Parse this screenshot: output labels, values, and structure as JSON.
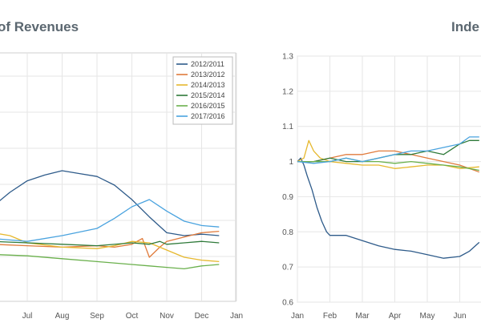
{
  "left_chart": {
    "title": "of Revenues"
  },
  "right_chart": {
    "title": "Inde"
  },
  "chart_data": [
    {
      "type": "line",
      "title": "of Revenues",
      "x_ticks": [
        "Jul",
        "Aug",
        "Sep",
        "Oct",
        "Nov",
        "Dec",
        "Jan"
      ],
      "legend_position": "top-right",
      "grid": true,
      "series": [
        {
          "name": "2012/2011",
          "color": "#2e5b8a",
          "x": [
            5.5,
            6.0,
            6.5,
            7.0,
            7.5,
            8.0,
            8.5,
            9.0,
            9.5,
            10.0,
            10.5,
            11.0,
            11.5,
            12.0,
            12.5
          ],
          "y": [
            0.35,
            0.4,
            0.5,
            0.58,
            0.62,
            0.65,
            0.63,
            0.61,
            0.55,
            0.45,
            0.33,
            0.22,
            0.2,
            0.21,
            0.2
          ]
        },
        {
          "name": "2013/2012",
          "color": "#e07b3c",
          "x": [
            5.5,
            6.0,
            7.0,
            8.0,
            9.0,
            9.5,
            10.0,
            10.3,
            10.5,
            10.8,
            11.0,
            11.5,
            12.0,
            12.5
          ],
          "y": [
            0.15,
            0.14,
            0.13,
            0.12,
            0.13,
            0.12,
            0.14,
            0.18,
            0.05,
            0.12,
            0.16,
            0.19,
            0.22,
            0.23
          ]
        },
        {
          "name": "2014/2013",
          "color": "#e6b82e",
          "x": [
            5.5,
            6.0,
            6.5,
            7.0,
            8.0,
            9.0,
            9.5,
            10.0,
            10.5,
            11.0,
            11.5,
            12.0,
            12.5
          ],
          "y": [
            0.23,
            0.22,
            0.2,
            0.15,
            0.12,
            0.11,
            0.13,
            0.16,
            0.15,
            0.1,
            0.05,
            0.03,
            0.02
          ]
        },
        {
          "name": "2015/2014",
          "color": "#2f7a3a",
          "x": [
            5.5,
            6.0,
            7.0,
            8.0,
            9.0,
            10.0,
            10.5,
            10.8,
            11.0,
            11.5,
            12.0,
            12.5
          ],
          "y": [
            0.16,
            0.16,
            0.15,
            0.14,
            0.13,
            0.15,
            0.14,
            0.16,
            0.14,
            0.15,
            0.16,
            0.15
          ]
        },
        {
          "name": "2016/2015",
          "color": "#6ab04c",
          "x": [
            5.5,
            6.0,
            7.0,
            8.0,
            9.0,
            10.0,
            10.5,
            11.0,
            11.5,
            12.0,
            12.5
          ],
          "y": [
            0.08,
            0.07,
            0.06,
            0.04,
            0.02,
            0.0,
            -0.01,
            -0.02,
            -0.03,
            -0.01,
            0.0
          ]
        },
        {
          "name": "2017/2016",
          "color": "#4aa3df",
          "x": [
            5.5,
            6.0,
            7.0,
            8.0,
            9.0,
            9.5,
            10.0,
            10.5,
            11.0,
            11.5,
            12.0,
            12.5
          ],
          "y": [
            0.2,
            0.18,
            0.16,
            0.2,
            0.25,
            0.32,
            0.4,
            0.45,
            0.37,
            0.3,
            0.27,
            0.26
          ]
        }
      ]
    },
    {
      "type": "line",
      "title": "Inde",
      "x_ticks": [
        "Jan",
        "Feb",
        "Mar",
        "Apr",
        "May",
        "Jun"
      ],
      "y_ticks": [
        "1.3",
        "1.2",
        "1.1",
        "1",
        "0.9",
        "0.8",
        "0.7",
        "0.6"
      ],
      "ylim": [
        0.6,
        1.3
      ],
      "grid": true,
      "series": [
        {
          "color": "#2e5b8a",
          "x": [
            0.0,
            0.1,
            0.2,
            0.3,
            0.45,
            0.6,
            0.75,
            0.9,
            1.0,
            1.2,
            1.5,
            2.0,
            2.5,
            3.0,
            3.5,
            4.0,
            4.5,
            5.0,
            5.3,
            5.6
          ],
          "y": [
            1.0,
            1.01,
            0.99,
            0.96,
            0.92,
            0.87,
            0.83,
            0.8,
            0.79,
            0.79,
            0.79,
            0.775,
            0.76,
            0.75,
            0.745,
            0.735,
            0.725,
            0.73,
            0.745,
            0.77
          ]
        },
        {
          "color": "#e07b3c",
          "x": [
            0.0,
            0.5,
            1.0,
            1.5,
            2.0,
            2.5,
            3.0,
            3.5,
            4.0,
            4.5,
            5.0,
            5.3,
            5.6
          ],
          "y": [
            1.0,
            1.0,
            1.01,
            1.02,
            1.02,
            1.03,
            1.03,
            1.02,
            1.01,
            1.0,
            0.99,
            0.98,
            0.97
          ]
        },
        {
          "color": "#e6b82e",
          "x": [
            0.0,
            0.2,
            0.35,
            0.5,
            0.7,
            1.0,
            1.5,
            2.0,
            2.5,
            3.0,
            3.5,
            4.0,
            4.5,
            5.0,
            5.6
          ],
          "y": [
            1.0,
            1.01,
            1.06,
            1.03,
            1.01,
            1.0,
            0.995,
            0.99,
            0.99,
            0.98,
            0.985,
            0.99,
            0.99,
            0.98,
            0.985
          ]
        },
        {
          "color": "#2f7a3a",
          "x": [
            0.0,
            0.5,
            1.0,
            1.5,
            2.0,
            2.5,
            3.0,
            3.5,
            4.0,
            4.5,
            5.0,
            5.3,
            5.6
          ],
          "y": [
            1.0,
            1.0,
            1.01,
            1.0,
            1.0,
            1.01,
            1.02,
            1.02,
            1.03,
            1.02,
            1.05,
            1.06,
            1.06
          ]
        },
        {
          "color": "#6ab04c",
          "x": [
            0.0,
            0.5,
            1.0,
            1.5,
            2.0,
            2.5,
            3.0,
            3.5,
            4.0,
            4.5,
            5.0,
            5.3,
            5.6
          ],
          "y": [
            1.0,
            1.0,
            1.0,
            1.01,
            1.0,
            1.0,
            0.995,
            1.0,
            0.995,
            0.99,
            0.985,
            0.98,
            0.975
          ]
        },
        {
          "color": "#4aa3df",
          "x": [
            0.0,
            0.5,
            1.0,
            1.5,
            2.0,
            2.5,
            3.0,
            3.5,
            4.0,
            4.5,
            5.0,
            5.3,
            5.6
          ],
          "y": [
            1.0,
            0.995,
            1.0,
            1.01,
            1.0,
            1.01,
            1.02,
            1.03,
            1.03,
            1.04,
            1.05,
            1.07,
            1.07
          ]
        }
      ]
    }
  ]
}
